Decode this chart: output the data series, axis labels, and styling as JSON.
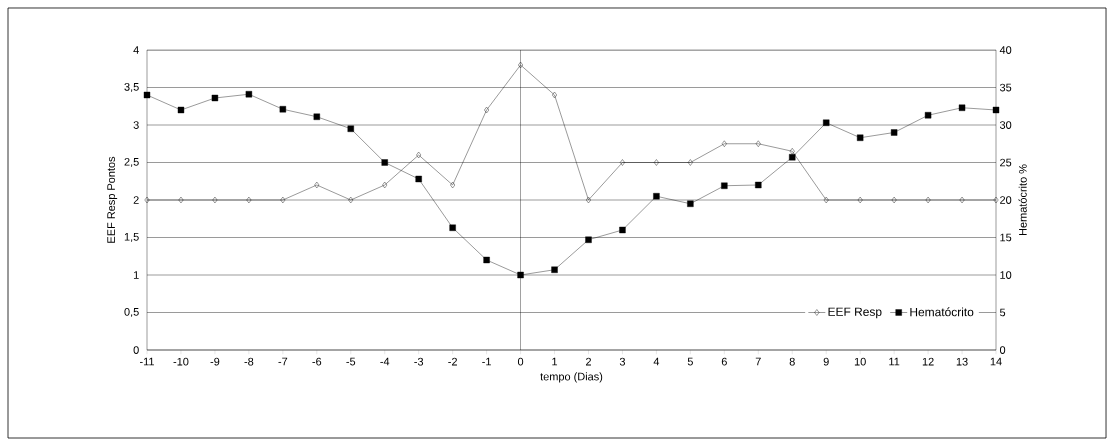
{
  "chart_data": {
    "type": "line",
    "xlabel": "tempo (Dias)",
    "ylabel": "EEF Resp Pontos",
    "y2label": "Hematócrito %",
    "x": [
      -11,
      -10,
      -9,
      -8,
      -7,
      -6,
      -5,
      -4,
      -3,
      -2,
      -1,
      0,
      1,
      2,
      3,
      4,
      5,
      6,
      7,
      8,
      9,
      10,
      11,
      12,
      13,
      14
    ],
    "series": [
      {
        "name": "EEF Resp",
        "color": "#000000",
        "marker": "diamond",
        "values": [
          2,
          2,
          2,
          2,
          2,
          2.2,
          2,
          2.2,
          2.6,
          2.2,
          3.2,
          3.8,
          3.4,
          2,
          2.5,
          2.5,
          2.5,
          2.75,
          2.75,
          2.65,
          2,
          2,
          2,
          2,
          2,
          2
        ]
      },
      {
        "name": "Hematócrito",
        "color": "#000000",
        "marker": "square",
        "axis": "y2",
        "values": [
          34,
          32,
          33.6,
          34.1,
          32.1,
          31.1,
          29.5,
          25,
          22.8,
          16.3,
          12,
          10,
          10.7,
          14.7,
          16,
          20.5,
          19.5,
          21.9,
          22,
          25.7,
          30.3,
          28.3,
          29,
          31.3,
          32.3,
          32
        ]
      }
    ],
    "xlim": [
      -11,
      14
    ],
    "xticks": [
      -11,
      -10,
      -9,
      -8,
      -7,
      -6,
      -5,
      -4,
      -3,
      -2,
      -1,
      0,
      1,
      2,
      3,
      4,
      5,
      6,
      7,
      8,
      9,
      10,
      11,
      12,
      13,
      14
    ],
    "ylim": [
      0,
      4
    ],
    "yticks": [
      0,
      {
        "value": 0.5,
        "label": "0,5"
      },
      1,
      {
        "value": 1.5,
        "label": "1,5"
      },
      2,
      {
        "value": 2.5,
        "label": "2,5"
      },
      3,
      {
        "value": 3.5,
        "label": "3,5"
      },
      4
    ],
    "y2lim": [
      0,
      40
    ],
    "y2ticks": [
      0,
      5,
      10,
      15,
      20,
      25,
      30,
      35,
      40
    ],
    "ref_lines": [
      {
        "axis": "x",
        "value": 0,
        "color": "#000000"
      }
    ],
    "grid": "y",
    "legend": "bottom right",
    "line_style": "solid"
  }
}
